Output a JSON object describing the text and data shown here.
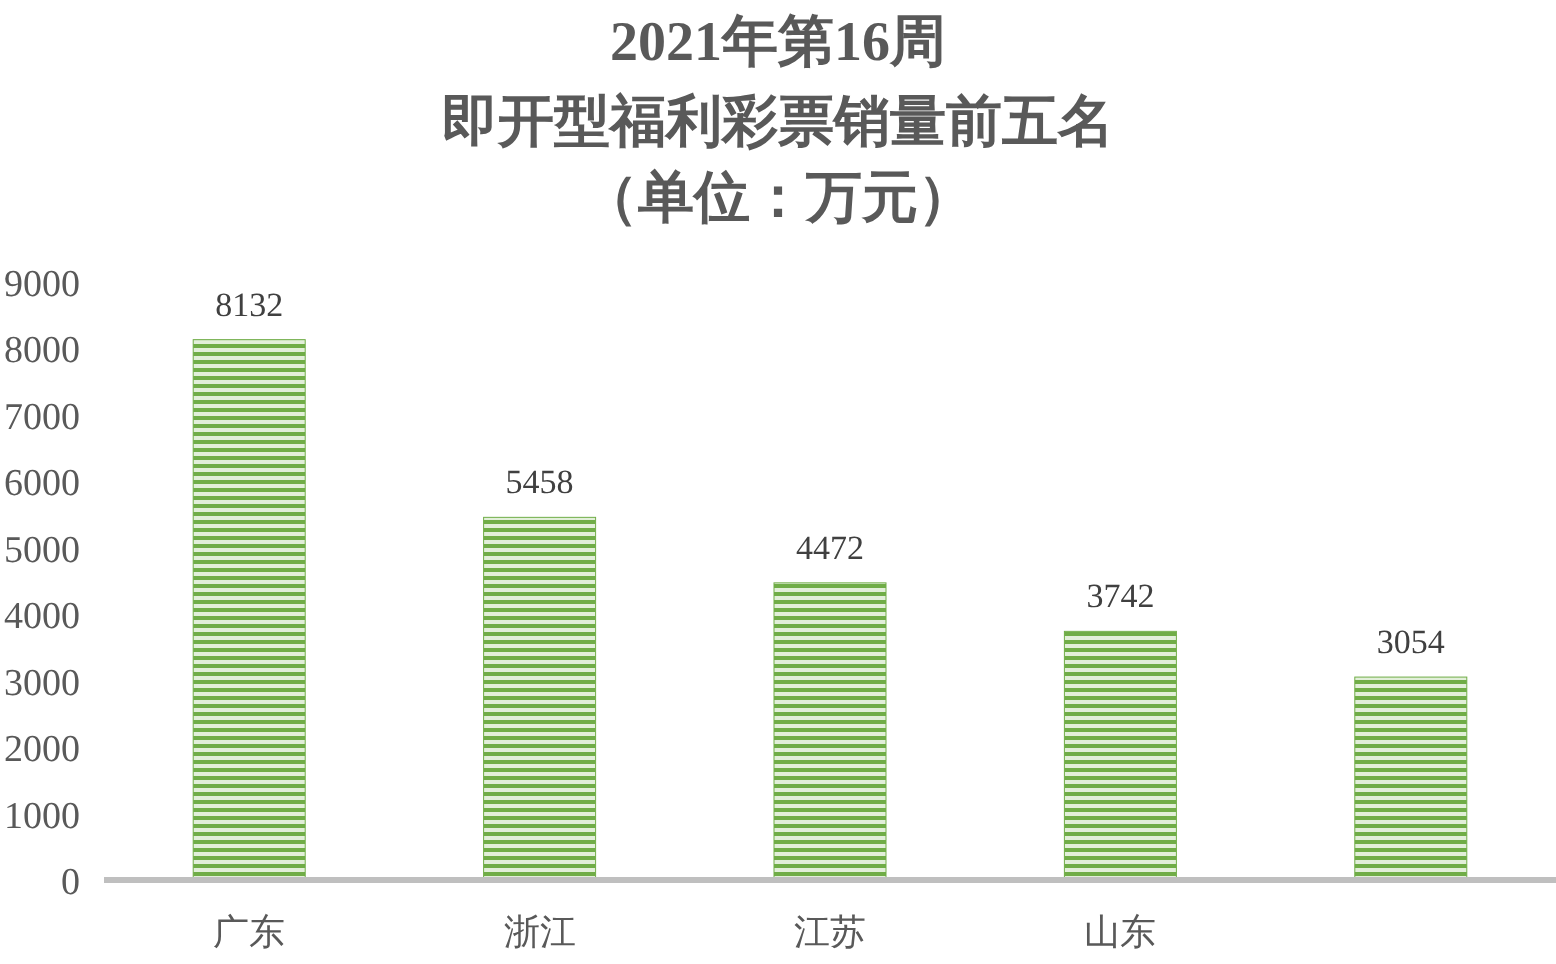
{
  "chart_data": {
    "type": "bar",
    "title": "2021年第16周",
    "subtitle": "即开型福利彩票销量前五名",
    "annotations": [
      "（单位：万元）"
    ],
    "categories": [
      "广东",
      "浙江",
      "江苏",
      "山东",
      null
    ],
    "values": [
      8132,
      5458,
      4472,
      3742,
      3054
    ],
    "color": "#70ad47",
    "ylim": [
      0,
      9000
    ],
    "yticks": [
      0,
      1000,
      2000,
      3000,
      4000,
      5000,
      6000,
      7000,
      8000,
      9000
    ],
    "data_labels": true
  }
}
